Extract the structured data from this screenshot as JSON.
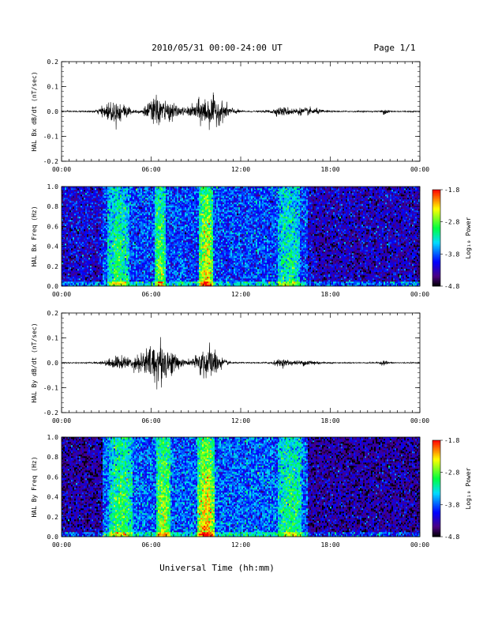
{
  "header": {
    "date_range": "2010/05/31  00:00-24:00 UT",
    "page": "Page 1/1"
  },
  "x_axis": {
    "label": "Universal Time (hh:mm)",
    "ticks": [
      "00:00",
      "06:00",
      "12:00",
      "18:00",
      "00:00"
    ],
    "range_hours": [
      0,
      24
    ]
  },
  "colorbar": {
    "label": "Log₁₀ Power",
    "ticks": [
      "-1.8",
      "-2.8",
      "-3.8",
      "-4.8"
    ],
    "range": [
      -4.8,
      -1.8
    ],
    "colormap": "rainbow: #000000 → #4b0082 → #0000ff → #00e0ff → #00ff40 → #ffff00 → #ff0000"
  },
  "chart_data": [
    {
      "type": "line",
      "name": "panel-bx-dbdt",
      "ylabel": "HAL Bx dB/dt (nT/sec)",
      "ylim": [
        -0.2,
        0.2
      ],
      "yticks": [
        "0.2",
        "0.1",
        "0.0",
        "-0.1",
        "-0.2"
      ],
      "color": "#000000",
      "activity_bursts": [
        {
          "center_hour": 3.3,
          "width_hour": 0.5,
          "amp": 0.025
        },
        {
          "center_hour": 4.0,
          "width_hour": 0.5,
          "amp": 0.02
        },
        {
          "center_hour": 6.3,
          "width_hour": 0.5,
          "amp": 0.04
        },
        {
          "center_hour": 7.3,
          "width_hour": 0.6,
          "amp": 0.02
        },
        {
          "center_hour": 9.7,
          "width_hour": 0.7,
          "amp": 0.045
        },
        {
          "center_hour": 10.8,
          "width_hour": 0.6,
          "amp": 0.015
        },
        {
          "center_hour": 14.8,
          "width_hour": 0.6,
          "amp": 0.012
        },
        {
          "center_hour": 16.5,
          "width_hour": 0.7,
          "amp": 0.01
        },
        {
          "center_hour": 21.7,
          "width_hour": 0.2,
          "amp": 0.008
        }
      ],
      "baseline_noise": 0.002
    },
    {
      "type": "heatmap",
      "name": "panel-bx-freq",
      "ylabel": "HAL Bx Freq (Hz)",
      "ylim": [
        0.0,
        1.0
      ],
      "yticks": [
        "1.0",
        "0.8",
        "0.6",
        "0.4",
        "0.2",
        "0.0"
      ],
      "x_range_hours": [
        0,
        24
      ],
      "background_level": -3.9,
      "enhanced_bands": [
        {
          "start_hour": 3.1,
          "end_hour": 4.5,
          "level": -3.0
        },
        {
          "start_hour": 6.2,
          "end_hour": 7.0,
          "level": -2.7
        },
        {
          "start_hour": 9.2,
          "end_hour": 10.2,
          "level": -2.3
        },
        {
          "start_hour": 14.5,
          "end_hour": 16.0,
          "level": -3.1
        }
      ],
      "quiet_intervals": [
        {
          "start_hour": 0.0,
          "end_hour": 2.8,
          "level": -4.2
        },
        {
          "start_hour": 16.5,
          "end_hour": 24.0,
          "level": -4.3
        }
      ]
    },
    {
      "type": "line",
      "name": "panel-by-dbdt",
      "ylabel": "HAL By dB/dt (nT/sec)",
      "ylim": [
        -0.2,
        0.2
      ],
      "yticks": [
        "0.2",
        "0.1",
        "0.0",
        "-0.1",
        "-0.2"
      ],
      "color": "#000000",
      "activity_bursts": [
        {
          "center_hour": 3.8,
          "width_hour": 0.6,
          "amp": 0.02
        },
        {
          "center_hour": 5.5,
          "width_hour": 0.6,
          "amp": 0.03
        },
        {
          "center_hour": 6.5,
          "width_hour": 0.5,
          "amp": 0.06
        },
        {
          "center_hour": 7.4,
          "width_hour": 0.5,
          "amp": 0.025
        },
        {
          "center_hour": 9.8,
          "width_hour": 0.6,
          "amp": 0.055
        },
        {
          "center_hour": 14.8,
          "width_hour": 0.5,
          "amp": 0.01
        },
        {
          "center_hour": 16.5,
          "width_hour": 0.6,
          "amp": 0.008
        },
        {
          "center_hour": 21.6,
          "width_hour": 0.2,
          "amp": 0.007
        }
      ],
      "baseline_noise": 0.0018
    },
    {
      "type": "heatmap",
      "name": "panel-by-freq",
      "ylabel": "HAL By Freq (Hz)",
      "ylim": [
        0.0,
        1.0
      ],
      "yticks": [
        "1.0",
        "0.8",
        "0.6",
        "0.4",
        "0.2",
        "0.0"
      ],
      "x_range_hours": [
        0,
        24
      ],
      "background_level": -3.8,
      "enhanced_bands": [
        {
          "start_hour": 3.2,
          "end_hour": 4.8,
          "level": -2.9
        },
        {
          "start_hour": 6.3,
          "end_hour": 7.3,
          "level": -2.6
        },
        {
          "start_hour": 9.1,
          "end_hour": 10.3,
          "level": -2.2
        },
        {
          "start_hour": 14.5,
          "end_hour": 16.1,
          "level": -3.0
        }
      ],
      "quiet_intervals": [
        {
          "start_hour": 0.0,
          "end_hour": 2.8,
          "level": -4.4
        },
        {
          "start_hour": 16.5,
          "end_hour": 24.0,
          "level": -4.4
        }
      ]
    }
  ]
}
